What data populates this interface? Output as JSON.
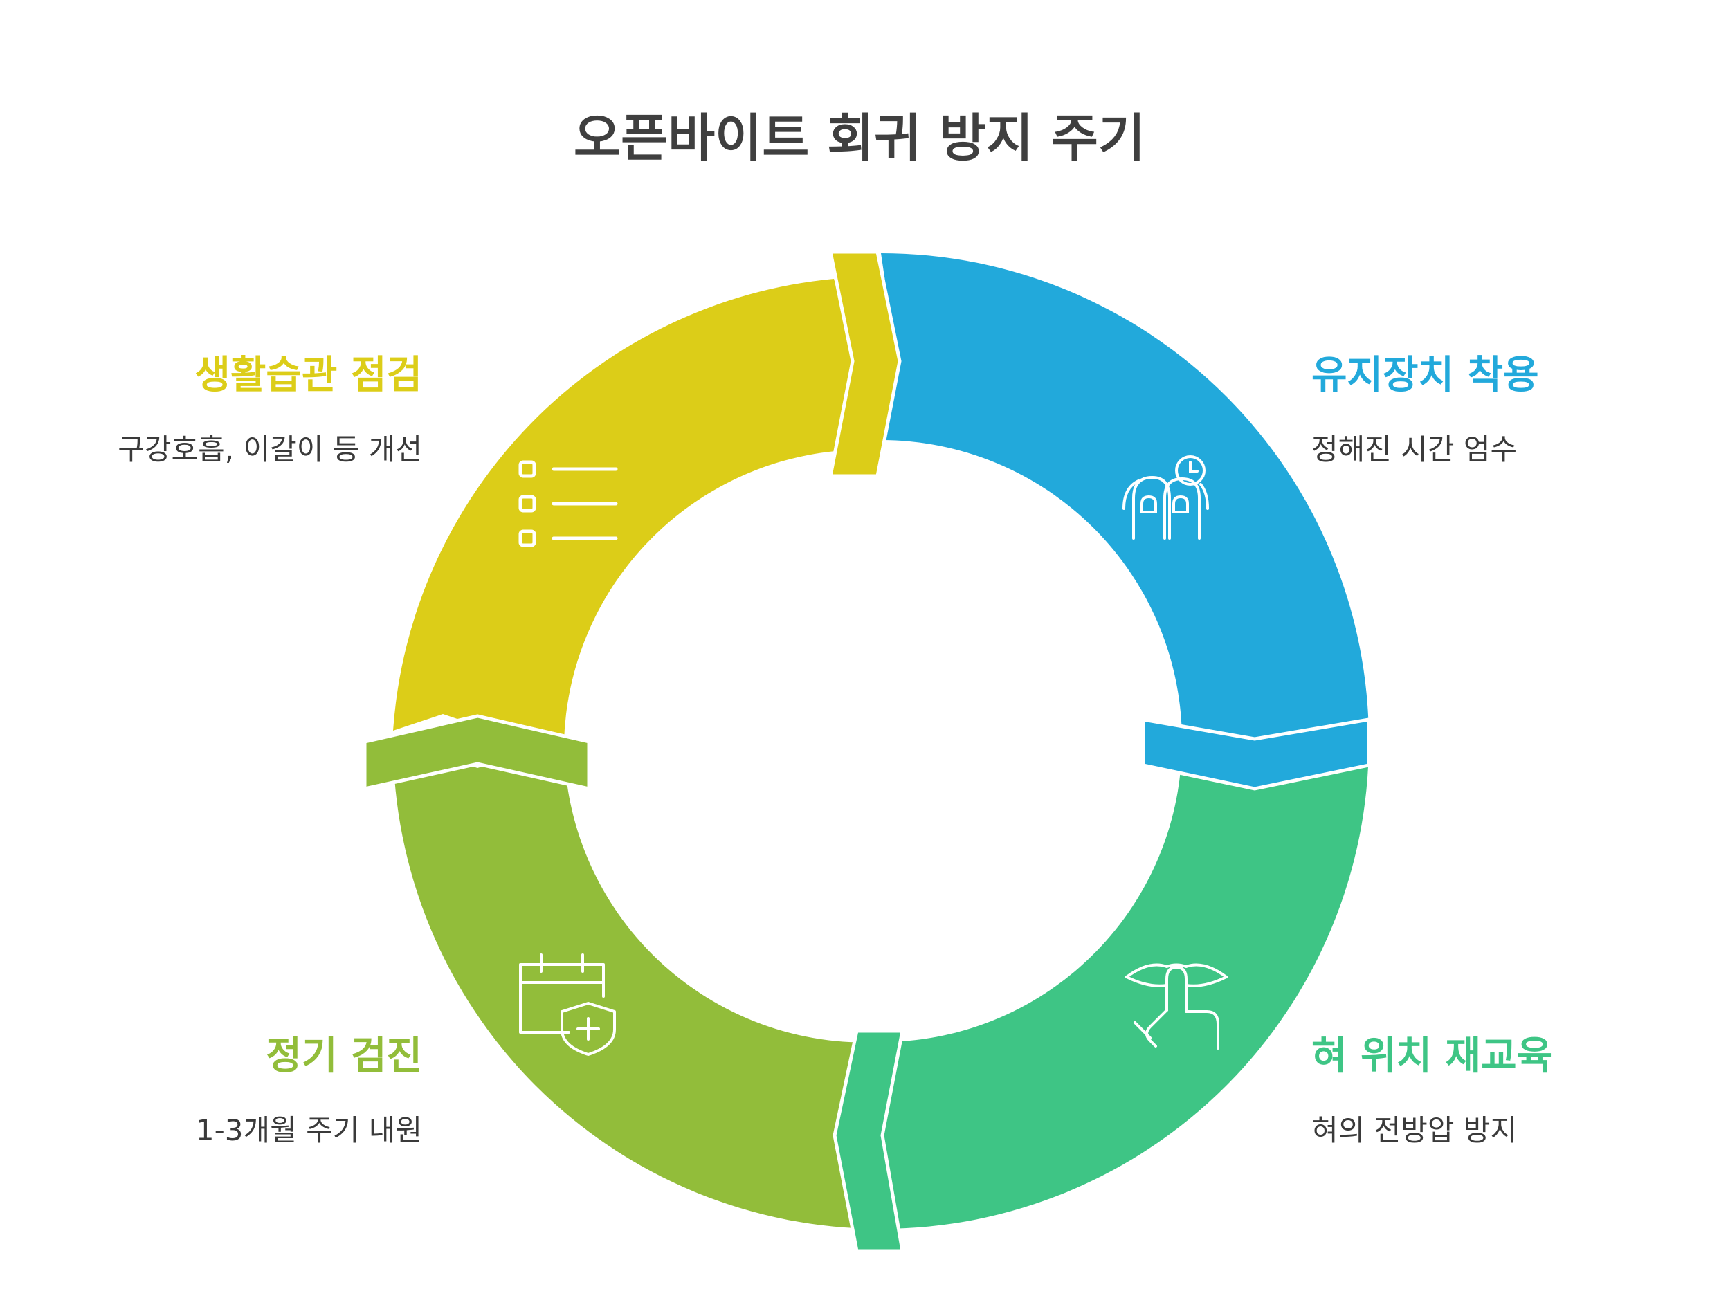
{
  "title": "오픈바이트 회귀 방지 주기",
  "colors": {
    "habit": "#dccd18",
    "retainer": "#22a9db",
    "tongue": "#3ec585",
    "checkup": "#92bd3a"
  },
  "steps": [
    {
      "heading": "생활습관 점검",
      "desc": "구강호흡, 이갈이 등 개선",
      "icon": "checklist-icon"
    },
    {
      "heading": "유지장치 착용",
      "desc": "정해진 시간 엄수",
      "icon": "hands-clock-icon"
    },
    {
      "heading": "혀 위치 재교육",
      "desc": "혀의 전방압 방지",
      "icon": "lips-finger-icon"
    },
    {
      "heading": "정기 검진",
      "desc": "1-3개월 주기 내원",
      "icon": "calendar-shield-icon"
    }
  ]
}
